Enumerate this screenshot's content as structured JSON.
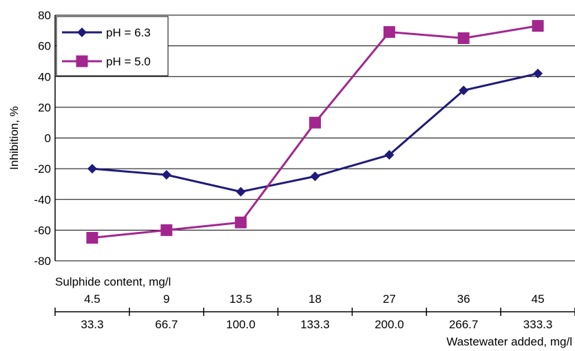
{
  "chart_data": {
    "type": "line",
    "categories": [
      "4.5",
      "9",
      "13.5",
      "18",
      "27",
      "36",
      "45"
    ],
    "categories_secondary": [
      "33.3",
      "66.7",
      "100.0",
      "133.3",
      "200.0",
      "266.7",
      "333.3"
    ],
    "series": [
      {
        "name": "pH = 6.3",
        "values": [
          -20,
          -24,
          -35,
          -25,
          -11,
          31,
          42
        ],
        "color": "#1f1a7a",
        "marker": "diamond"
      },
      {
        "name": "pH = 5.0",
        "values": [
          -65,
          -60,
          -55,
          10,
          69,
          65,
          73
        ],
        "color": "#a3268f",
        "marker": "square"
      }
    ],
    "ylabel": "Inhibition, %",
    "xlabel_primary": "Sulphide content, mg/l",
    "xlabel_secondary": "Wastewater added, mg/l",
    "ylim": [
      -80,
      80
    ],
    "yticks": [
      80,
      60,
      40,
      20,
      0,
      -20,
      -40,
      -60,
      -80
    ],
    "grid": true,
    "legend_position": "top-left"
  }
}
